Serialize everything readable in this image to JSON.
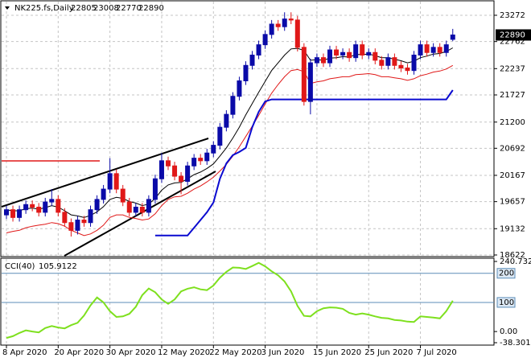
{
  "chart_data": [
    {
      "type": "candlestick",
      "symbol": "NK225.fs,Daily",
      "categories": [
        "8 Apr 2020",
        null,
        null,
        null,
        null,
        null,
        null,
        null,
        "20 Apr 2020",
        null,
        null,
        null,
        null,
        null,
        null,
        null,
        "30 Apr 2020",
        null,
        null,
        null,
        null,
        null,
        null,
        null,
        "12 May 2020",
        null,
        null,
        null,
        null,
        null,
        null,
        null,
        "22 May 2020",
        null,
        null,
        null,
        null,
        null,
        null,
        null,
        "3 Jun 2020",
        null,
        null,
        null,
        null,
        null,
        null,
        null,
        "15 Jun 2020",
        null,
        null,
        null,
        null,
        null,
        null,
        null,
        "25 Jun 2020",
        null,
        null,
        null,
        null,
        null,
        null,
        null,
        "7 Jul 2020",
        null,
        null,
        null,
        null,
        null
      ],
      "open": [
        19400,
        19500,
        19350,
        19500,
        19600,
        19550,
        19450,
        19650,
        19700,
        19450,
        19250,
        19100,
        19300,
        19250,
        19500,
        19700,
        19900,
        20200,
        19900,
        19650,
        19450,
        19550,
        19450,
        19700,
        20100,
        20450,
        20350,
        20150,
        20050,
        20350,
        20500,
        20450,
        20600,
        20750,
        21100,
        21350,
        21700,
        22000,
        22300,
        22500,
        22700,
        22900,
        23100,
        23050,
        23200,
        23180,
        22650,
        21600,
        22350,
        22450,
        22350,
        22600,
        22500,
        22550,
        22450,
        22700,
        22500,
        22550,
        22400,
        22300,
        22450,
        22300,
        22250,
        22200,
        22500,
        22700,
        22550,
        22650,
        22550,
        22805
      ],
      "high": [
        19580,
        19580,
        19580,
        19680,
        19680,
        19630,
        19730,
        19900,
        19780,
        19530,
        19330,
        19380,
        19380,
        19580,
        19780,
        19980,
        20500,
        20280,
        19980,
        19730,
        19630,
        19630,
        19780,
        20180,
        20600,
        20530,
        20430,
        20230,
        20430,
        20580,
        20580,
        20680,
        20830,
        21180,
        21430,
        21780,
        22080,
        22380,
        22580,
        22780,
        22980,
        23180,
        23180,
        23330,
        23330,
        23260,
        22730,
        22430,
        22530,
        22530,
        22680,
        22680,
        22630,
        22630,
        22780,
        22780,
        22630,
        22630,
        22480,
        22530,
        22530,
        22380,
        22330,
        22580,
        22780,
        22780,
        22730,
        22730,
        22780,
        23008
      ],
      "low": [
        19320,
        19270,
        19270,
        19420,
        19470,
        19370,
        19370,
        19570,
        19370,
        19170,
        18980,
        19020,
        19170,
        19170,
        19420,
        19620,
        19820,
        19820,
        19570,
        19370,
        19370,
        19370,
        19370,
        19620,
        20020,
        20270,
        20070,
        19800,
        19970,
        20270,
        20370,
        20370,
        20520,
        20670,
        21020,
        21270,
        21620,
        21920,
        22220,
        22420,
        22620,
        22820,
        22970,
        22970,
        23100,
        22570,
        21520,
        21350,
        22270,
        22270,
        22270,
        22420,
        22420,
        22370,
        22370,
        22420,
        22420,
        22320,
        22220,
        22220,
        22220,
        22170,
        22120,
        22120,
        22420,
        22470,
        22470,
        22470,
        22470,
        22770
      ],
      "close": [
        19500,
        19350,
        19500,
        19600,
        19550,
        19450,
        19650,
        19700,
        19450,
        19250,
        19100,
        19300,
        19250,
        19500,
        19700,
        19900,
        20200,
        19900,
        19650,
        19450,
        19550,
        19450,
        19700,
        20100,
        20450,
        20350,
        20150,
        20050,
        20350,
        20500,
        20450,
        20600,
        20750,
        21100,
        21350,
        21700,
        22000,
        22300,
        22500,
        22700,
        22900,
        23100,
        23050,
        23200,
        23180,
        22650,
        21600,
        22350,
        22450,
        22350,
        22600,
        22500,
        22550,
        22450,
        22700,
        22500,
        22550,
        22400,
        22300,
        22450,
        22300,
        22250,
        22200,
        22500,
        22700,
        22550,
        22650,
        22550,
        22700,
        22890
      ],
      "up_color": "#0a0aa8",
      "down_color": "#e01818",
      "overlays": [
        {
          "color": "#000000",
          "values": [
            19500,
            19480,
            19480,
            19520,
            19530,
            19510,
            19540,
            19580,
            19550,
            19480,
            19400,
            19380,
            19350,
            19390,
            19460,
            19560,
            19700,
            19740,
            19720,
            19660,
            19630,
            19580,
            19610,
            19720,
            19880,
            19980,
            20020,
            20030,
            20100,
            20180,
            20230,
            20300,
            20390,
            20540,
            20700,
            20890,
            21100,
            21340,
            21560,
            21780,
            21990,
            22200,
            22350,
            22500,
            22620,
            22630,
            22590,
            22400,
            22410,
            22400,
            22440,
            22450,
            22470,
            22460,
            22510,
            22510,
            22520,
            22490,
            22450,
            22450,
            22420,
            22390,
            22350,
            22380,
            22450,
            22480,
            22520,
            22530,
            22570,
            22640
          ]
        },
        {
          "color": "#e01818",
          "values": [
            19050,
            19080,
            19100,
            19150,
            19180,
            19200,
            19220,
            19250,
            19230,
            19180,
            19100,
            19050,
            19000,
            19030,
            19100,
            19200,
            19350,
            19400,
            19400,
            19350,
            19330,
            19300,
            19320,
            19420,
            19580,
            19700,
            19750,
            19760,
            19820,
            19900,
            19960,
            20040,
            20130,
            20250,
            20380,
            20540,
            20720,
            20920,
            21120,
            21330,
            21550,
            21760,
            21930,
            22080,
            22200,
            22220,
            22180,
            21950,
            21980,
            22000,
            22040,
            22060,
            22080,
            22080,
            22120,
            22130,
            22140,
            22120,
            22080,
            22080,
            22060,
            22040,
            22010,
            22040,
            22100,
            22130,
            22170,
            22190,
            22230,
            22300
          ]
        },
        {
          "color": "#0a0ad0",
          "values": [
            null,
            null,
            null,
            null,
            null,
            null,
            null,
            null,
            null,
            null,
            null,
            null,
            null,
            null,
            null,
            null,
            null,
            null,
            null,
            null,
            null,
            null,
            null,
            19000,
            19000,
            19000,
            19000,
            19000,
            19000,
            19150,
            19300,
            19450,
            19640,
            20100,
            20400,
            20560,
            20620,
            20700,
            21100,
            21400,
            21600,
            21640,
            21640,
            21640,
            21640,
            21640,
            21640,
            21640,
            21640,
            21640,
            21640,
            21640,
            21640,
            21640,
            21640,
            21640,
            21640,
            21640,
            21640,
            21640,
            21640,
            21640,
            21640,
            21640,
            21640,
            21640,
            21640,
            21640,
            21640,
            21820
          ]
        }
      ],
      "ylim": [
        18606,
        23537
      ],
      "yticks": [
        23272,
        22762,
        22237,
        21727,
        21200,
        20692,
        20167,
        19657,
        19132,
        18622
      ],
      "grid": true
    },
    {
      "type": "line",
      "title": "CCI(40)",
      "color": "#7ee01e",
      "values": [
        -22,
        -16,
        -5,
        4,
        0,
        -3,
        12,
        19,
        14,
        11,
        22,
        30,
        55,
        90,
        117,
        100,
        70,
        50,
        52,
        61,
        85,
        125,
        148,
        135,
        110,
        95,
        110,
        138,
        147,
        152,
        145,
        142,
        158,
        185,
        205,
        220,
        219,
        215,
        225,
        236,
        224,
        207,
        193,
        172,
        138,
        88,
        54,
        52,
        70,
        80,
        83,
        82,
        78,
        64,
        58,
        62,
        58,
        52,
        47,
        45,
        40,
        38,
        34,
        33,
        52,
        50,
        48,
        45,
        70,
        105.9122
      ],
      "ylim": [
        -38.3014,
        240.7321
      ],
      "yticks": [
        240.7321,
        {
          "value": 0,
          "label": "0.00"
        },
        -38.3014
      ],
      "levels": [
        200,
        100
      ],
      "level_color": "#5b8db8"
    }
  ]
}
